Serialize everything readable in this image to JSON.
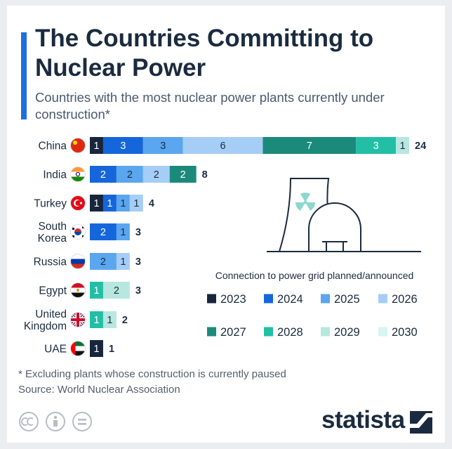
{
  "title": "The Countries Committing to Nuclear Power",
  "subtitle": "Countries with the most nuclear power plants currently under construction*",
  "footnote": "* Excluding plants whose construction is currently paused",
  "source": "Source: World Nuclear Association",
  "brand": "statista",
  "chart_data": {
    "type": "bar",
    "orientation": "horizontal",
    "stacked": true,
    "categories": [
      "China",
      "India",
      "Turkey",
      "South Korea",
      "Russia",
      "Egypt",
      "United Kingdom",
      "UAE"
    ],
    "category_labels": [
      [
        "China"
      ],
      [
        "India"
      ],
      [
        "Turkey"
      ],
      [
        "South",
        "Korea"
      ],
      [
        "Russia"
      ],
      [
        "Egypt"
      ],
      [
        "United",
        "Kingdom"
      ],
      [
        "UAE"
      ]
    ],
    "flag_icons": [
      "china-flag-icon",
      "india-flag-icon",
      "turkey-flag-icon",
      "south-korea-flag-icon",
      "russia-flag-icon",
      "egypt-flag-icon",
      "uk-flag-icon",
      "uae-flag-icon"
    ],
    "legend_title": "Connection to power grid planned/announced",
    "series": [
      {
        "name": "2023",
        "color": "#17263c",
        "values": [
          1,
          0,
          1,
          0,
          0,
          0,
          0,
          1
        ]
      },
      {
        "name": "2024",
        "color": "#1566db",
        "values": [
          3,
          2,
          1,
          2,
          0,
          0,
          0,
          0
        ]
      },
      {
        "name": "2025",
        "color": "#5aa6ef",
        "values": [
          3,
          2,
          1,
          1,
          2,
          0,
          0,
          0
        ]
      },
      {
        "name": "2026",
        "color": "#a6cdf5",
        "values": [
          6,
          2,
          1,
          0,
          1,
          0,
          0,
          0
        ]
      },
      {
        "name": "2027",
        "color": "#1c8a7b",
        "values": [
          7,
          2,
          0,
          0,
          0,
          0,
          0,
          0
        ]
      },
      {
        "name": "2028",
        "color": "#22bfa6",
        "values": [
          3,
          0,
          0,
          0,
          0,
          1,
          1,
          0
        ]
      },
      {
        "name": "2029",
        "color": "#b7e7df",
        "values": [
          1,
          0,
          0,
          0,
          0,
          2,
          1,
          0
        ]
      },
      {
        "name": "2030",
        "color": "#d6f5f3",
        "values": [
          0,
          0,
          0,
          0,
          0,
          0,
          0,
          0
        ]
      }
    ],
    "totals": [
      24,
      8,
      4,
      3,
      3,
      3,
      2,
      1
    ],
    "xlim": [
      0,
      24
    ]
  }
}
